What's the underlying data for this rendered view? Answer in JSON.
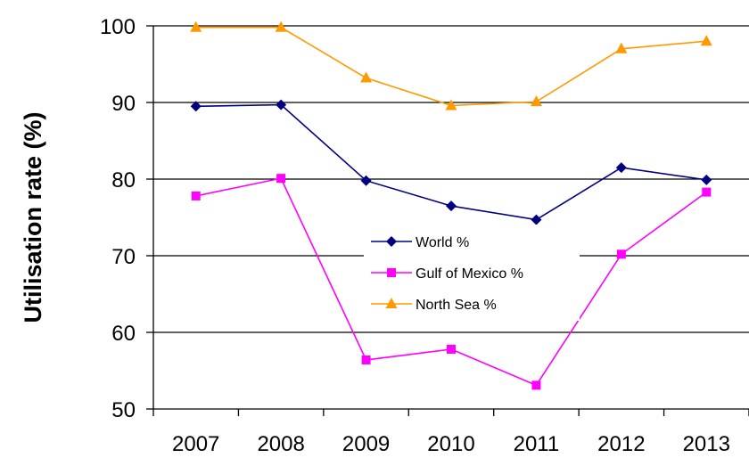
{
  "chart_data": {
    "type": "line",
    "title": "",
    "xlabel": "",
    "ylabel": "Utilisation rate (%)",
    "ylim": [
      50,
      100
    ],
    "yticks": [
      50,
      60,
      70,
      80,
      90,
      100
    ],
    "grid": "horizontal",
    "legend_position": "center",
    "categories": [
      "2007",
      "2008",
      "2009",
      "2010",
      "2011",
      "2012",
      "2013"
    ],
    "series": [
      {
        "name": "World %",
        "color": "#000080",
        "marker": "diamond",
        "values": [
          89.5,
          89.7,
          79.8,
          76.5,
          74.7,
          81.5,
          79.9
        ]
      },
      {
        "name": "Gulf of Mexico %",
        "color": "#ff00ff",
        "marker": "square",
        "values": [
          77.8,
          80.1,
          56.4,
          57.8,
          53.1,
          70.2,
          78.3
        ]
      },
      {
        "name": "North Sea %",
        "color": "#ff9900",
        "marker": "triangle",
        "values": [
          99.8,
          99.8,
          93.2,
          89.6,
          90.1,
          97.0,
          98.0
        ]
      }
    ]
  }
}
